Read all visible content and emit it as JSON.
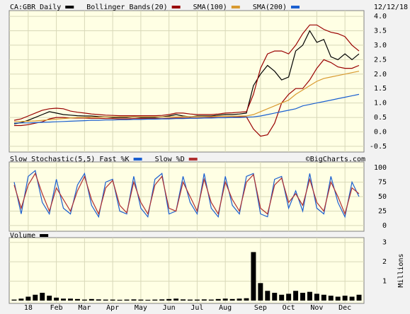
{
  "chart_data": [
    {
      "type": "line",
      "date": "12/12/18",
      "ylim": [
        -0.6,
        4.1
      ],
      "yticks": [
        {
          "value": 4,
          "label": "4.0"
        },
        3.5,
        {
          "value": 3,
          "label": "3.0"
        },
        2.5,
        {
          "value": 2,
          "label": "2.0"
        },
        1.5,
        {
          "value": 1,
          "label": "1.0"
        },
        0.5,
        {
          "value": 0,
          "label": "0.0"
        },
        -0.5
      ],
      "series": [
        {
          "name": "CA:GBR Daily",
          "color": "#000000",
          "values": [
            0.28,
            0.32,
            0.4,
            0.5,
            0.6,
            0.7,
            0.65,
            0.6,
            0.58,
            0.56,
            0.55,
            0.55,
            0.53,
            0.52,
            0.5,
            0.5,
            0.5,
            0.52,
            0.5,
            0.5,
            0.5,
            0.52,
            0.55,
            0.6,
            0.55,
            0.52,
            0.55,
            0.55,
            0.55,
            0.58,
            0.6,
            0.6,
            0.62,
            0.65,
            1.6,
            2.0,
            2.3,
            2.1,
            1.8,
            1.9,
            2.8,
            3.0,
            3.5,
            3.1,
            3.2,
            2.6,
            2.5,
            2.7,
            2.5,
            2.7
          ]
        },
        {
          "name": "Bollinger Bands(20)",
          "color": "#990000",
          "upper": [
            0.4,
            0.45,
            0.55,
            0.65,
            0.75,
            0.8,
            0.82,
            0.8,
            0.72,
            0.68,
            0.65,
            0.62,
            0.6,
            0.58,
            0.57,
            0.56,
            0.56,
            0.56,
            0.56,
            0.56,
            0.56,
            0.57,
            0.6,
            0.65,
            0.65,
            0.62,
            0.6,
            0.6,
            0.6,
            0.62,
            0.65,
            0.66,
            0.68,
            0.7,
            1.3,
            2.2,
            2.7,
            2.8,
            2.8,
            2.7,
            3.0,
            3.4,
            3.7,
            3.7,
            3.55,
            3.45,
            3.4,
            3.3,
            3.0,
            2.8
          ],
          "lower": [
            0.22,
            0.22,
            0.25,
            0.3,
            0.35,
            0.45,
            0.5,
            0.5,
            0.48,
            0.48,
            0.48,
            0.47,
            0.47,
            0.46,
            0.46,
            0.45,
            0.45,
            0.46,
            0.46,
            0.46,
            0.46,
            0.46,
            0.47,
            0.48,
            0.48,
            0.48,
            0.48,
            0.49,
            0.5,
            0.5,
            0.5,
            0.51,
            0.52,
            0.52,
            0.1,
            -0.15,
            -0.1,
            0.3,
            1.0,
            1.3,
            1.5,
            1.5,
            1.8,
            2.2,
            2.5,
            2.4,
            2.25,
            2.2,
            2.2,
            2.3
          ]
        },
        {
          "name": "SMA(100)",
          "color": "#d89a30",
          "values": [
            0.35,
            0.36,
            0.37,
            0.38,
            0.4,
            0.42,
            0.44,
            0.46,
            0.48,
            0.5,
            0.5,
            0.51,
            0.51,
            0.52,
            0.52,
            0.52,
            0.52,
            0.52,
            0.52,
            0.52,
            0.52,
            0.52,
            0.52,
            0.52,
            0.53,
            0.53,
            0.53,
            0.53,
            0.53,
            0.54,
            0.54,
            0.54,
            0.55,
            0.55,
            0.6,
            0.7,
            0.8,
            0.9,
            1.0,
            1.1,
            1.3,
            1.45,
            1.6,
            1.75,
            1.85,
            1.9,
            1.95,
            2.0,
            2.05,
            2.1
          ]
        },
        {
          "name": "SMA(200)",
          "color": "#1a5fd0",
          "values": [
            0.3,
            0.31,
            0.31,
            0.32,
            0.33,
            0.34,
            0.35,
            0.36,
            0.37,
            0.38,
            0.39,
            0.4,
            0.4,
            0.41,
            0.41,
            0.42,
            0.42,
            0.43,
            0.43,
            0.44,
            0.44,
            0.45,
            0.45,
            0.46,
            0.46,
            0.47,
            0.47,
            0.48,
            0.48,
            0.49,
            0.49,
            0.5,
            0.5,
            0.51,
            0.52,
            0.55,
            0.6,
            0.65,
            0.7,
            0.75,
            0.8,
            0.9,
            0.95,
            1.0,
            1.05,
            1.1,
            1.15,
            1.2,
            1.25,
            1.3
          ]
        }
      ]
    },
    {
      "type": "line",
      "title": "Slow Stochastic(5,5)",
      "credit": "©BigCharts.com",
      "ylim": [
        -5,
        105
      ],
      "yticks": [
        0,
        25,
        50,
        75,
        100
      ],
      "series": [
        {
          "name": "Fast %K",
          "color": "#1a5fd0",
          "values": [
            75,
            20,
            85,
            95,
            40,
            20,
            80,
            30,
            20,
            70,
            90,
            35,
            15,
            75,
            80,
            25,
            20,
            85,
            30,
            15,
            80,
            90,
            20,
            25,
            85,
            40,
            20,
            90,
            30,
            15,
            85,
            35,
            20,
            85,
            90,
            20,
            15,
            80,
            85,
            30,
            60,
            25,
            90,
            30,
            20,
            85,
            40,
            15,
            75,
            50
          ]
        },
        {
          "name": "Slow %D",
          "color": "#b03030",
          "values": [
            70,
            30,
            70,
            90,
            55,
            25,
            65,
            45,
            25,
            60,
            85,
            45,
            20,
            65,
            78,
            35,
            22,
            75,
            40,
            20,
            70,
            85,
            30,
            25,
            75,
            50,
            25,
            80,
            40,
            20,
            75,
            45,
            25,
            75,
            88,
            30,
            20,
            70,
            82,
            40,
            55,
            35,
            80,
            40,
            25,
            75,
            50,
            20,
            65,
            55
          ]
        }
      ]
    },
    {
      "type": "bar",
      "y_label": "Millions",
      "ylim": [
        0,
        3.1
      ],
      "yticks": [
        1,
        2,
        3
      ],
      "categories": [
        null,
        null,
        "18",
        null,
        null,
        null,
        "Feb",
        null,
        null,
        null,
        "Mar",
        null,
        null,
        null,
        "Apr",
        null,
        null,
        null,
        "May",
        null,
        null,
        null,
        "Jun",
        null,
        null,
        null,
        "Jul",
        null,
        null,
        null,
        "Aug",
        null,
        null,
        null,
        null,
        "Sep",
        null,
        null,
        null,
        "Oct",
        null,
        null,
        null,
        "Nov",
        null,
        null,
        null,
        "Dec",
        null,
        null
      ],
      "series": [
        {
          "name": "Volume",
          "color": "#000000",
          "values": [
            0.05,
            0.1,
            0.2,
            0.3,
            0.4,
            0.25,
            0.15,
            0.1,
            0.1,
            0.08,
            0.05,
            0.08,
            0.06,
            0.05,
            0.05,
            0.04,
            0.05,
            0.06,
            0.05,
            0.04,
            0.05,
            0.06,
            0.08,
            0.1,
            0.06,
            0.05,
            0.05,
            0.06,
            0.05,
            0.08,
            0.1,
            0.08,
            0.1,
            0.12,
            2.5,
            0.9,
            0.5,
            0.4,
            0.3,
            0.35,
            0.5,
            0.4,
            0.45,
            0.35,
            0.3,
            0.25,
            0.2,
            0.25,
            0.2,
            0.3
          ]
        }
      ]
    }
  ]
}
